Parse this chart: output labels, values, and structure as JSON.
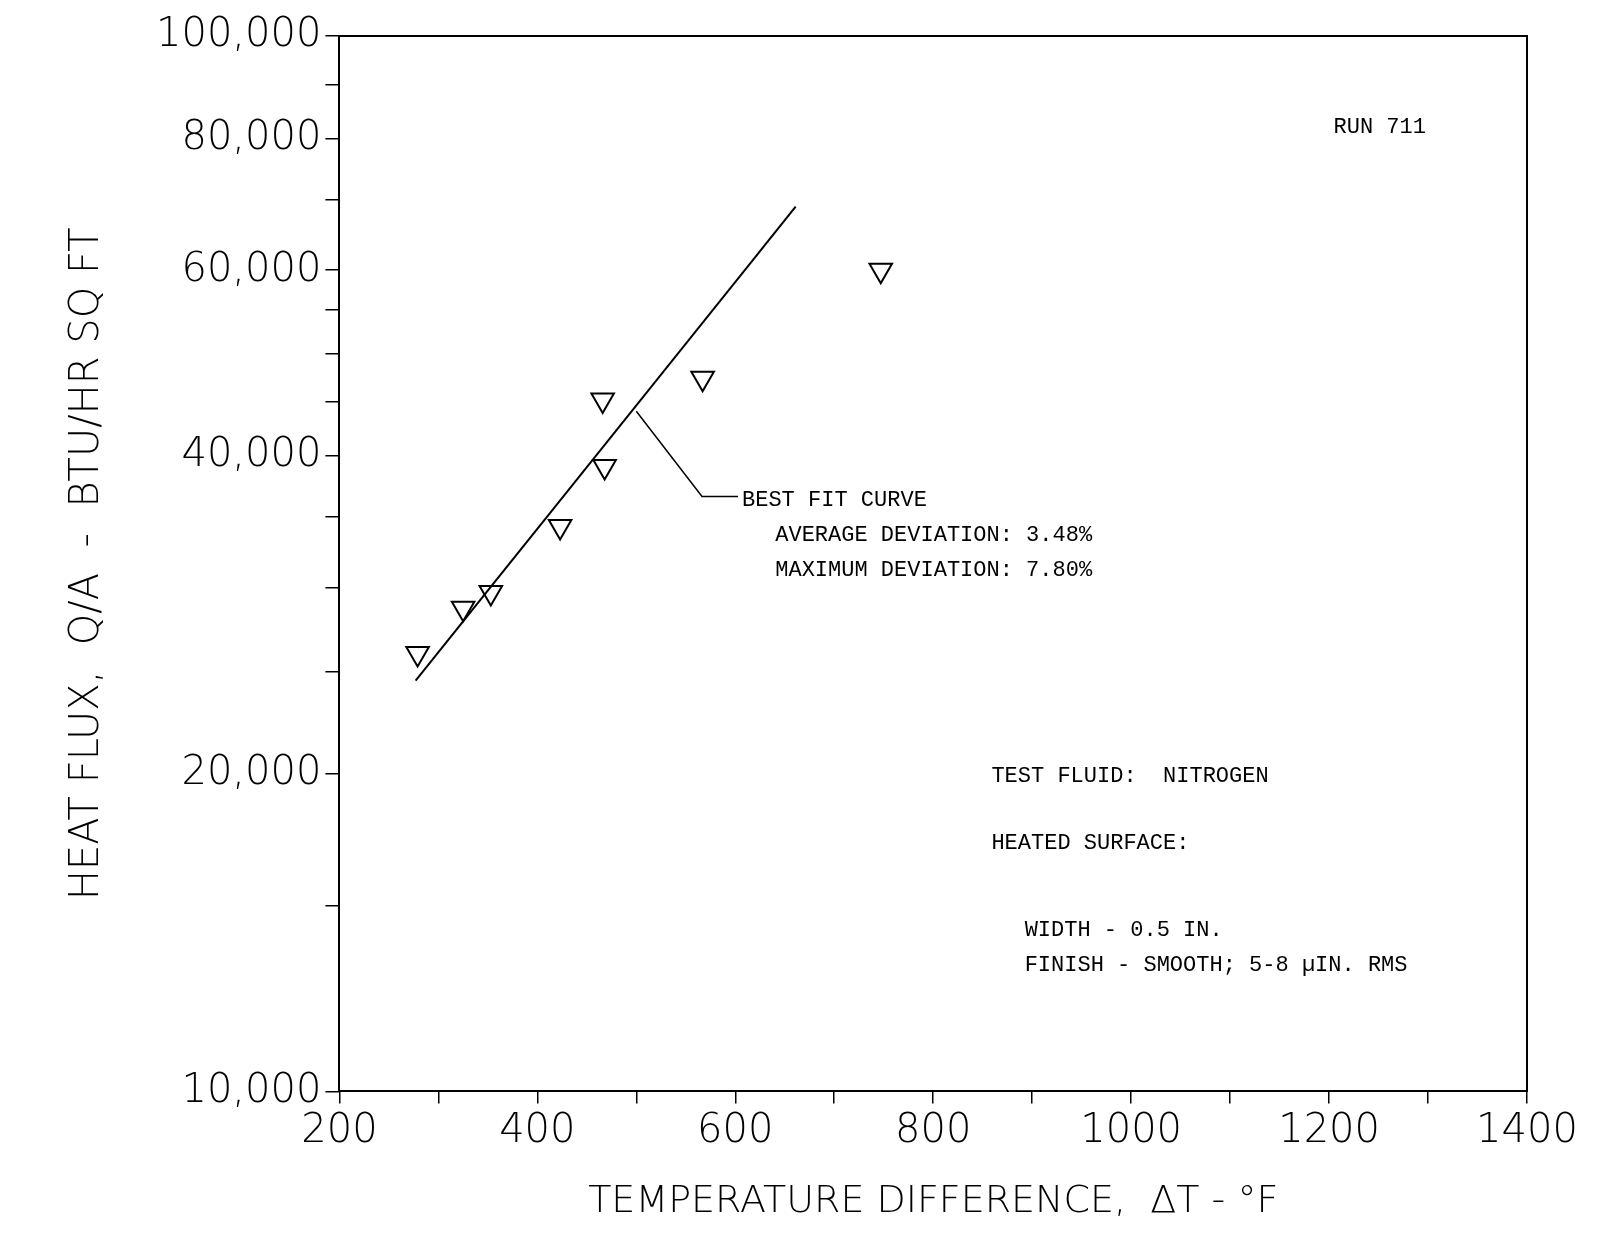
{
  "chart_data": {
    "type": "scatter",
    "xlabel": "TEMPERATURE DIFFERENCE,  ΔT - °F",
    "ylabel": "HEAT FLUX,  Q/A  -  BTU/HR SQ FT",
    "series": [
      {
        "type": "scatter",
        "x": [
          279,
          325,
          353,
          423,
          468,
          466,
          567,
          747
        ],
        "values": [
          26000,
          28700,
          29700,
          34300,
          39100,
          45200,
          47400,
          60000
        ],
        "color": "#000000",
        "marker": "triangle"
      },
      {
        "type": "line",
        "x": [
          277,
          661
        ],
        "values": [
          24500,
          68900
        ],
        "color": "#000000",
        "marker": "none"
      }
    ],
    "xlim": [
      200,
      1400
    ],
    "xticks": [
      200,
      {
        "value": 300,
        "label": null
      },
      400,
      {
        "value": 500,
        "label": null
      },
      600,
      {
        "value": 700,
        "label": null
      },
      800,
      {
        "value": 900,
        "label": null
      },
      1000,
      {
        "value": 1100,
        "label": null
      },
      1200,
      {
        "value": 1300,
        "label": null
      },
      1400
    ],
    "ylim": [
      10000,
      100000
    ],
    "yticks": [
      {
        "value": 10000,
        "label": "10,000"
      },
      {
        "value": 15000,
        "label": null
      },
      {
        "value": 20000,
        "label": "20,000"
      },
      {
        "value": 25000,
        "label": null
      },
      {
        "value": 30000,
        "label": null
      },
      {
        "value": 35000,
        "label": null
      },
      {
        "value": 40000,
        "label": "40,000"
      },
      {
        "value": 45000,
        "label": null
      },
      {
        "value": 50000,
        "label": null
      },
      {
        "value": 55000,
        "label": null
      },
      {
        "value": 60000,
        "label": "60,000"
      },
      {
        "value": 70000,
        "label": null
      },
      {
        "value": 80000,
        "label": "80,000"
      },
      {
        "value": 90000,
        "label": null
      },
      {
        "value": 100000,
        "label": "100,000"
      }
    ],
    "log": "y",
    "grid": false,
    "legend": false,
    "line_style": "solid",
    "annotations": [
      "RUN 711",
      {
        "text": "BEST FIT CURVE",
        "x": 500,
        "y": 44100
      },
      "AVERAGE DEVIATION: 3.48%",
      "MAXIMUM DEVIATION: 7.80%",
      "TEST FLUID:  NITROGEN",
      "HEATED SURFACE:",
      "WIDTH - 0.5 IN.",
      "FINISH - SMOOTH; 5-8 µIN. RMS"
    ]
  }
}
